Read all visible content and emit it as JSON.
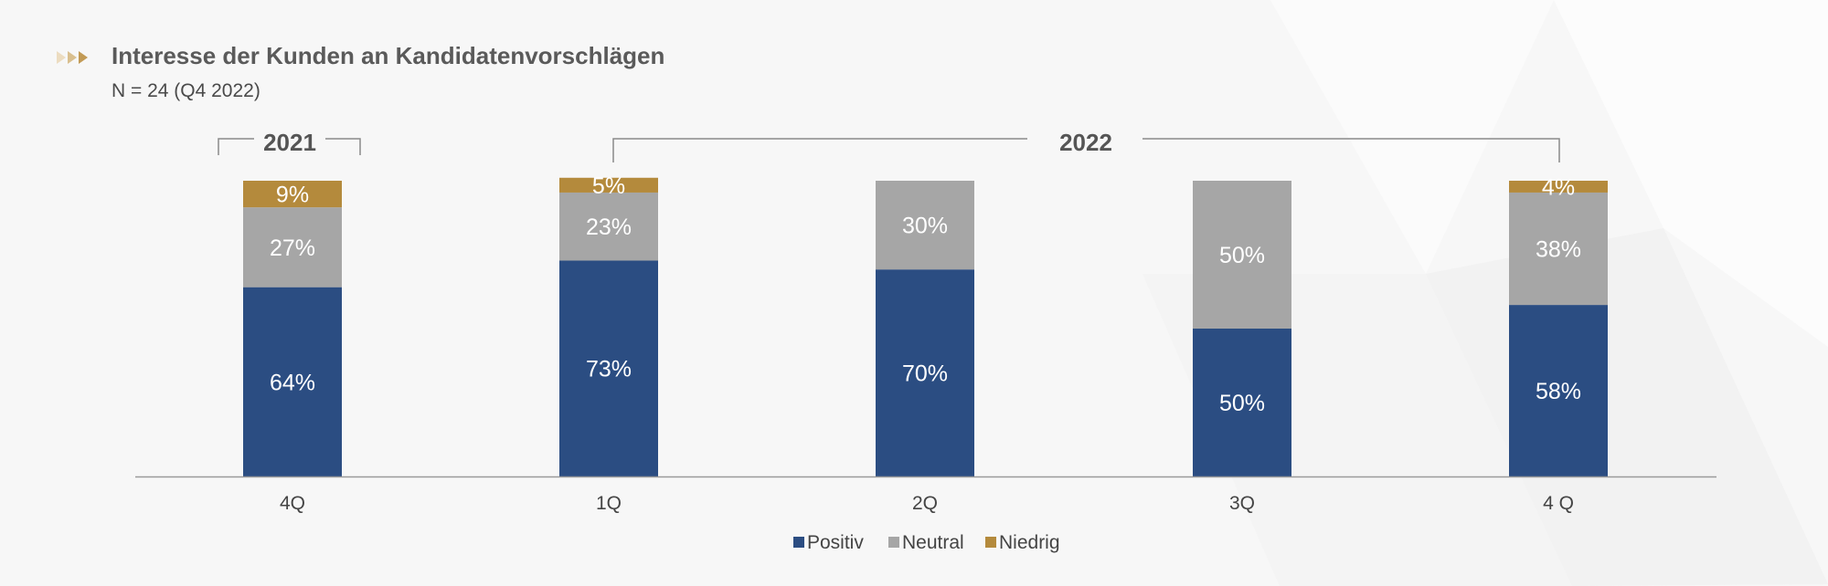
{
  "title": "Interesse der Kunden an Kandidatenvorschlägen",
  "subtitle": "N = 24 (Q4 2022)",
  "year_groups": [
    {
      "label": "2021"
    },
    {
      "label": "2022"
    }
  ],
  "colors": {
    "positiv": "#2b4d82",
    "neutral": "#a6a6a6",
    "niedrig": "#b48a3c",
    "accent_arrows": "#c9a96a"
  },
  "chart_data": {
    "type": "bar",
    "stacked": true,
    "title": "Interesse der Kunden an Kandidatenvorschlägen",
    "subtitle": "N = 24 (Q4 2022)",
    "categories": [
      "4Q",
      "1Q",
      "2Q",
      "3Q",
      "4 Q"
    ],
    "series": [
      {
        "name": "Positiv",
        "color": "#2b4d82",
        "values": [
          64,
          73,
          70,
          50,
          58
        ],
        "labels": [
          "64%",
          "73%",
          "70%",
          "50%",
          "58%"
        ]
      },
      {
        "name": "Neutral",
        "color": "#a6a6a6",
        "values": [
          27,
          23,
          30,
          50,
          38
        ],
        "labels": [
          "27%",
          "23%",
          "30%",
          "50%",
          "38%"
        ]
      },
      {
        "name": "Niedrig",
        "color": "#b48a3c",
        "values": [
          9,
          5,
          0,
          0,
          4
        ],
        "labels": [
          "9%",
          "5%",
          "",
          "",
          "4%"
        ]
      }
    ],
    "ylim": [
      0,
      100
    ],
    "grid": false,
    "legend_position": "bottom-center"
  }
}
